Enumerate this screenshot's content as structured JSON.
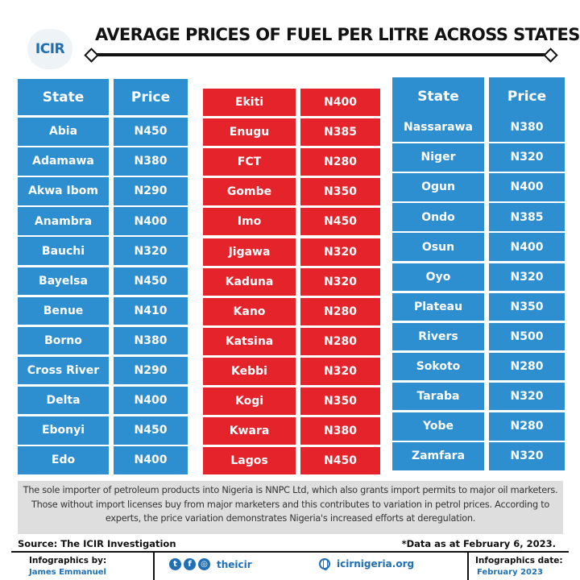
{
  "logo_text": "ICIR",
  "title": "AVERAGE PRICES OF FUEL PER LITRE ACROSS STATES",
  "headers": {
    "state": "State",
    "price": "Price"
  },
  "left_table": [
    {
      "state": "Abia",
      "price": "N450"
    },
    {
      "state": "Adamawa",
      "price": "N380"
    },
    {
      "state": "Akwa Ibom",
      "price": "N290"
    },
    {
      "state": "Anambra",
      "price": "N400"
    },
    {
      "state": "Bauchi",
      "price": "N320"
    },
    {
      "state": "Bayelsa",
      "price": "N450"
    },
    {
      "state": "Benue",
      "price": "N410"
    },
    {
      "state": "Borno",
      "price": "N380"
    },
    {
      "state": "Cross River",
      "price": "N290"
    },
    {
      "state": "Delta",
      "price": "N400"
    },
    {
      "state": "Ebonyi",
      "price": "N450"
    },
    {
      "state": "Edo",
      "price": "N400"
    }
  ],
  "middle_table": [
    {
      "state": "Ekiti",
      "price": "N400"
    },
    {
      "state": "Enugu",
      "price": "N385"
    },
    {
      "state": "FCT",
      "price": "N280"
    },
    {
      "state": "Gombe",
      "price": "N350"
    },
    {
      "state": "Imo",
      "price": "N450"
    },
    {
      "state": "Jigawa",
      "price": "N320"
    },
    {
      "state": "Kaduna",
      "price": "N320"
    },
    {
      "state": "Kano",
      "price": "N280"
    },
    {
      "state": "Katsina",
      "price": "N280"
    },
    {
      "state": "Kebbi",
      "price": "N320"
    },
    {
      "state": "Kogi",
      "price": "N350"
    },
    {
      "state": "Kwara",
      "price": "N380"
    },
    {
      "state": "Lagos",
      "price": "N450"
    }
  ],
  "right_table": [
    {
      "state": "Nassarawa",
      "price": "N380"
    },
    {
      "state": "Niger",
      "price": "N320"
    },
    {
      "state": "Ogun",
      "price": "N400"
    },
    {
      "state": "Ondo",
      "price": "N385"
    },
    {
      "state": "Osun",
      "price": "N400"
    },
    {
      "state": "Oyo",
      "price": "N320"
    },
    {
      "state": "Plateau",
      "price": "N350"
    },
    {
      "state": "Rivers",
      "price": "N500"
    },
    {
      "state": "Sokoto",
      "price": "N280"
    },
    {
      "state": "Taraba",
      "price": "N320"
    },
    {
      "state": "Yobe",
      "price": "N280"
    },
    {
      "state": "Zamfara",
      "price": "N320"
    }
  ],
  "note": "The sole importer of petroleum products into Nigeria is NNPC Ltd, which also grants import permits to major oil marketers. Those without import licenses buy from major marketers and this contributes to variation in petrol prices. According to experts, the price variation demonstrates Nigeria's increased efforts at deregulation.",
  "source": "Source:  The ICIR Investigation",
  "data_as": "*Data as at February 6, 2023.",
  "footer": {
    "infographics_by_label": "Infographics by:",
    "infographics_by_name": "James Emmanuel",
    "social_handle": "theicir",
    "website": "icirnigeria.org",
    "date_label": "Infographics date:",
    "date_value": "February 2023"
  },
  "colors": {
    "blue": "#2e8fd0",
    "red": "#e4232b",
    "note_bg": "#dedede",
    "brand_blue": "#1f6fb2"
  },
  "icons": [
    "twitter-icon",
    "facebook-icon",
    "instagram-icon",
    "globe-icon"
  ]
}
